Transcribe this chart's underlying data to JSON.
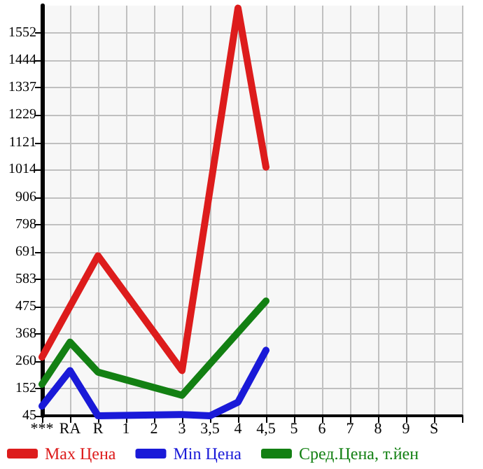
{
  "chart_data": {
    "type": "line",
    "categories": [
      "***",
      "RA",
      "R",
      "1",
      "2",
      "3",
      "3,5",
      "4",
      "4,5",
      "5",
      "6",
      "7",
      "8",
      "9",
      "S",
      null
    ],
    "series": [
      {
        "name": "Max Цена",
        "color": "#dd1c1c",
        "values": [
          276,
          null,
          675,
          null,
          null,
          223,
          null,
          1650,
          1024,
          null,
          null,
          null,
          null,
          null,
          null,
          null
        ]
      },
      {
        "name": "Min Цена",
        "color": "#1a1ad8",
        "values": [
          83,
          223,
          45,
          null,
          null,
          50,
          45,
          99,
          303,
          null,
          null,
          null,
          null,
          null,
          null,
          null
        ]
      },
      {
        "name": "Сред.Цена, т.йен",
        "color": "#138013",
        "values": [
          169,
          335,
          217,
          null,
          null,
          126,
          null,
          null,
          497,
          null,
          null,
          null,
          null,
          null,
          null,
          null
        ]
      }
    ],
    "ylim": [
      45,
      1660
    ],
    "yticks": [
      45,
      152,
      260,
      368,
      475,
      583,
      691,
      798,
      906,
      1014,
      1121,
      1229,
      1337,
      1444,
      1552
    ],
    "grid": true,
    "legend": "bottom",
    "marker": "none",
    "line_style": "solid"
  }
}
